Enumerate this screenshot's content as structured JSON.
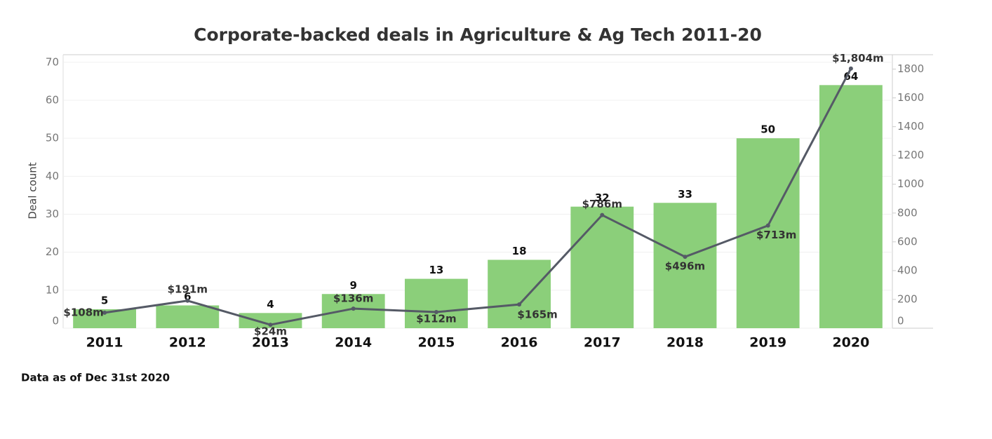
{
  "chart_data": {
    "type": "bar",
    "title": "Corporate-backed deals in Agriculture & Ag Tech 2011-20",
    "y_label": "Deal count",
    "footnote": "Data as of Dec 31st 2020",
    "categories": [
      "2011",
      "2012",
      "2013",
      "2014",
      "2015",
      "2016",
      "2017",
      "2018",
      "2019",
      "2020"
    ],
    "series": [
      {
        "type": "bar",
        "color": "#8bcf7a",
        "values": [
          5,
          6,
          4,
          9,
          13,
          18,
          32,
          33,
          50,
          64
        ]
      },
      {
        "type": "line",
        "axis": "y2",
        "color": "#555a66",
        "values": [
          108,
          191,
          24,
          136,
          112,
          165,
          786,
          496,
          713,
          1804
        ],
        "value_labels": [
          "$108m",
          "$191m",
          "$24m",
          "$136m",
          "$112m",
          "$165m",
          "$786m",
          "$496m",
          "$713m",
          "$1,804m"
        ]
      }
    ],
    "ylim": [
      0,
      72
    ],
    "yticks": [
      0,
      10,
      20,
      30,
      40,
      50,
      60,
      70
    ],
    "y2lim": [
      0,
      1900
    ],
    "y2ticks": [
      0,
      200,
      400,
      600,
      800,
      1000,
      1200,
      1400,
      1600,
      1800
    ],
    "grid": true
  }
}
